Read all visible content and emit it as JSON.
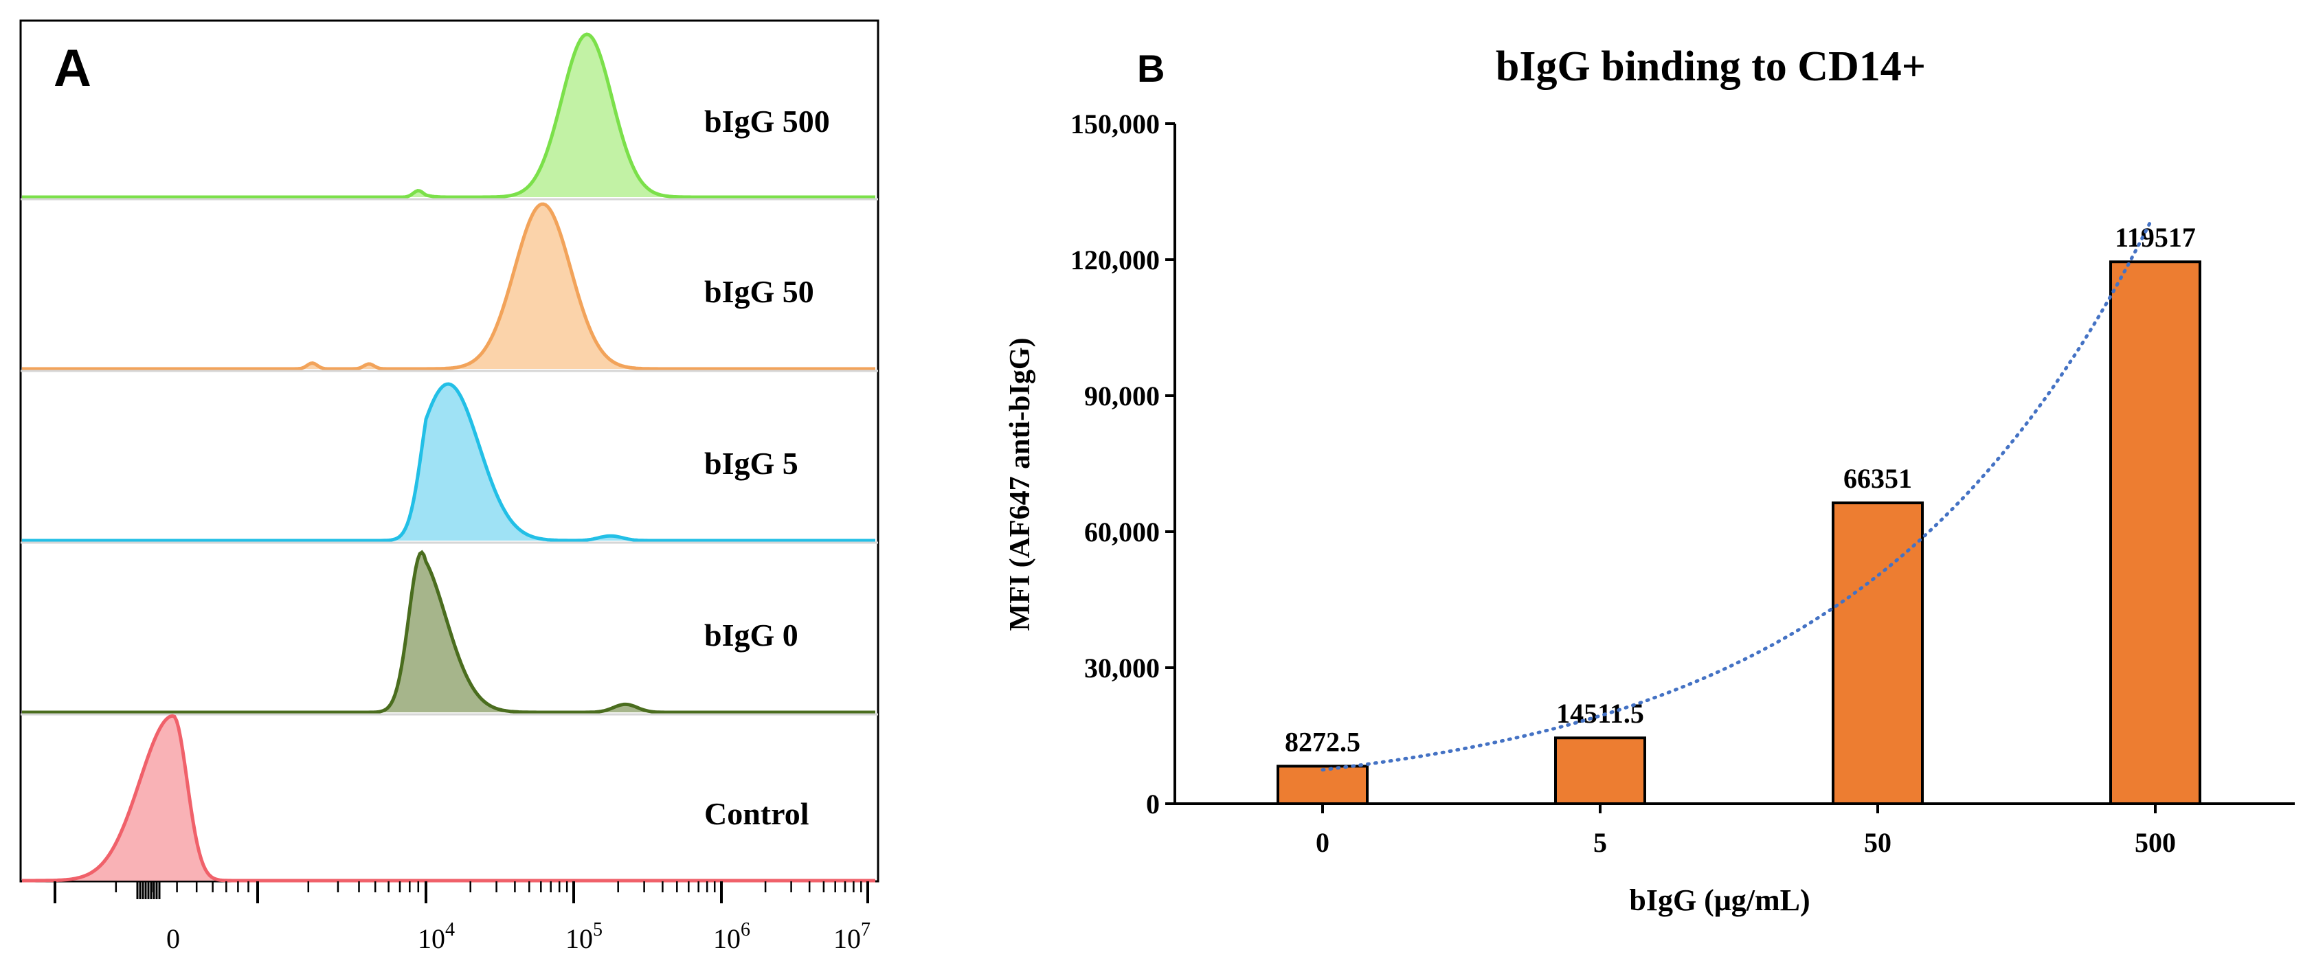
{
  "panel_a": {
    "letter": "A",
    "tracks": [
      {
        "label": "bIgG 500",
        "peak_log10": 5.09,
        "sigma": 0.17,
        "line_color": "#7be04a",
        "fill_color": "#c2f2a5",
        "bumps": [
          [
            3.88,
            0.04
          ]
        ]
      },
      {
        "label": "bIgG 50",
        "peak_log10": 4.79,
        "sigma": 0.19,
        "line_color": "#f2a35a",
        "fill_color": "#fbd3aa",
        "bumps": [
          [
            2.2,
            0.035
          ],
          [
            3.1,
            0.03
          ]
        ]
      },
      {
        "label": "bIgG 5",
        "peak_log10": 4.15,
        "sigma": 0.21,
        "line_color": "#22bfe6",
        "fill_color": "#9fe2f5",
        "bumps": [
          [
            5.25,
            0.03
          ]
        ]
      },
      {
        "label": "bIgG 0",
        "peak_log10": 3.93,
        "sigma": 0.2,
        "line_color": "#4a6d1e",
        "fill_color": "#a6b58b",
        "bumps": [
          [
            5.35,
            0.05
          ]
        ]
      },
      {
        "label": "Control",
        "peak_log10": 0.0,
        "sigma": 0.22,
        "line_color": "#f0616a",
        "fill_color": "#f9b2b6",
        "bumps": []
      }
    ],
    "x_axis": {
      "tick_labels": [
        {
          "base": "0",
          "exp": "",
          "value": 0
        },
        {
          "base": "10",
          "exp": "4",
          "value": 4
        },
        {
          "base": "10",
          "exp": "5",
          "value": 5
        },
        {
          "base": "10",
          "exp": "6",
          "value": 6
        },
        {
          "base": "10",
          "exp": "7",
          "value": 7
        }
      ]
    }
  },
  "panel_b": {
    "letter": "B"
  },
  "chart_data": {
    "type": "bar",
    "title": "bIgG binding to CD14+",
    "xlabel": "bIgG (μg/mL)",
    "ylabel": "MFI (AF647 anti-bIgG)",
    "categories": [
      "0",
      "5",
      "50",
      "500"
    ],
    "values": [
      8272.5,
      14511.5,
      66351,
      119517
    ],
    "data_labels": [
      "8272.5",
      "14511.5",
      "66351",
      "119517"
    ],
    "ylim": [
      0,
      150000
    ],
    "yticks": [
      0,
      30000,
      60000,
      90000,
      120000,
      150000
    ],
    "ytick_labels": [
      "0",
      "30,000",
      "60,000",
      "90,000",
      "120,000",
      "150,000"
    ],
    "bar_color": "#ed7d31",
    "trendline": {
      "type": "exponential",
      "color": "#4472c4",
      "style": "dotted"
    },
    "grid": false
  }
}
